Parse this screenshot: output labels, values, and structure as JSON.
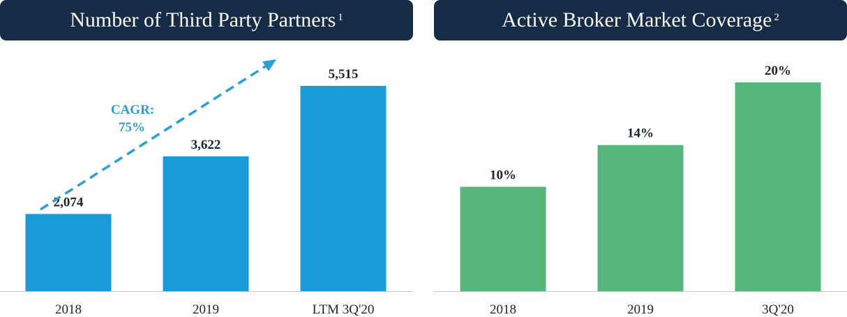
{
  "charts": [
    {
      "banner_color": "#152b46",
      "title": "Number of Third Party Partners",
      "footnote": "1"
    },
    {
      "banner_color": "#152b46",
      "title": "Active Broker Market Coverage",
      "footnote": "2"
    }
  ],
  "chart_data": [
    {
      "type": "bar",
      "title": "Number of Third Party Partners",
      "categories": [
        "2018",
        "2019",
        "LTM 3Q'20"
      ],
      "values": [
        2074,
        3622,
        5515
      ],
      "data_labels": [
        "2,074",
        "3,622",
        "5,515"
      ],
      "ylim": [
        0,
        5900
      ],
      "grid": false,
      "bar_color": "#1a9bd7",
      "annotation": {
        "line1": "CAGR:",
        "line2": "75%",
        "color": "#2a9fd6"
      }
    },
    {
      "type": "bar",
      "title": "Active Broker Market Coverage",
      "categories": [
        "2018",
        "2019",
        "3Q'20"
      ],
      "values": [
        10,
        14,
        20
      ],
      "data_labels": [
        "10%",
        "14%",
        "20%"
      ],
      "ylim": [
        0,
        20
      ],
      "grid": false,
      "bar_color": "#57b77b"
    }
  ]
}
